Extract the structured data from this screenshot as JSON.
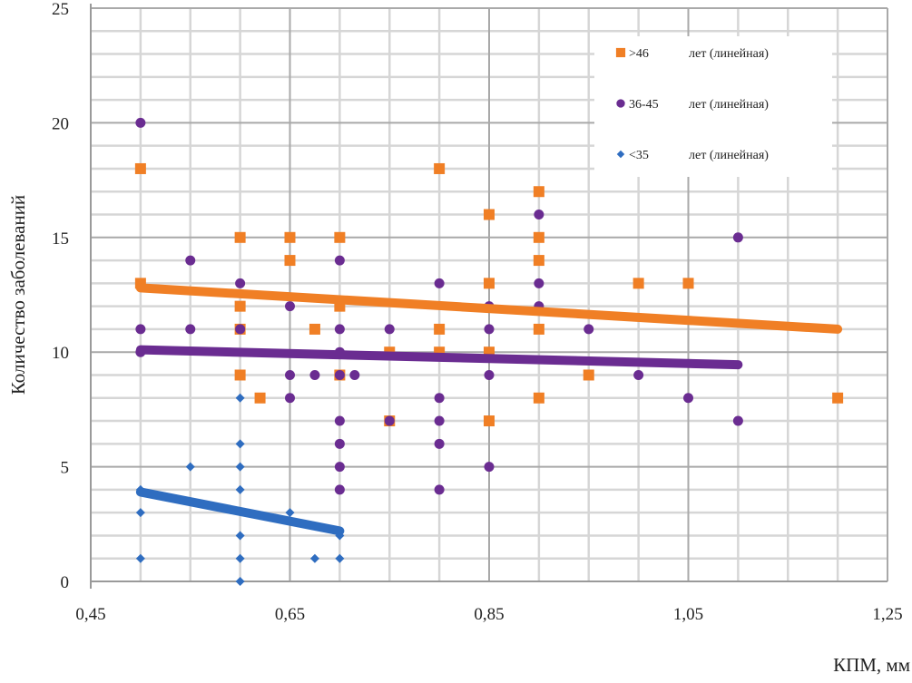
{
  "chart_data": {
    "type": "scatter",
    "title": "",
    "xlabel": "КПМ, мм",
    "ylabel": "Количество заболеваний",
    "xlim": [
      0.45,
      1.25
    ],
    "ylim": [
      0,
      25
    ],
    "x_major_step": 0.2,
    "x_minor_step": 0.05,
    "y_major_step": 5,
    "y_minor_step": 1,
    "x_tick_labels": [
      "0,45",
      "0,65",
      "0,85",
      "1,05",
      "1,25"
    ],
    "y_tick_labels": [
      "0",
      "5",
      "10",
      "15",
      "20",
      "25"
    ],
    "grid": true,
    "legend_position": "top-right",
    "series": [
      {
        "name": ">46",
        "legend_suffix": "лет (линейная)",
        "color": "#F07F25",
        "marker": "square",
        "points": [
          [
            0.5,
            18
          ],
          [
            0.5,
            13
          ],
          [
            0.6,
            15
          ],
          [
            0.6,
            12
          ],
          [
            0.6,
            11
          ],
          [
            0.6,
            9
          ],
          [
            0.62,
            8
          ],
          [
            0.65,
            15
          ],
          [
            0.65,
            14
          ],
          [
            0.675,
            11
          ],
          [
            0.7,
            15
          ],
          [
            0.7,
            12
          ],
          [
            0.7,
            9
          ],
          [
            0.75,
            10
          ],
          [
            0.75,
            7
          ],
          [
            0.8,
            18
          ],
          [
            0.8,
            11
          ],
          [
            0.8,
            10
          ],
          [
            0.85,
            16
          ],
          [
            0.85,
            13
          ],
          [
            0.85,
            10
          ],
          [
            0.85,
            7
          ],
          [
            0.9,
            17
          ],
          [
            0.9,
            15
          ],
          [
            0.9,
            14
          ],
          [
            0.9,
            11
          ],
          [
            0.9,
            8
          ],
          [
            0.95,
            9
          ],
          [
            1.0,
            13
          ],
          [
            1.05,
            13
          ],
          [
            1.2,
            8
          ]
        ],
        "trendline": [
          [
            0.5,
            12.8
          ],
          [
            1.2,
            11.0
          ]
        ]
      },
      {
        "name": "36-45",
        "legend_suffix": "лет (линейная)",
        "color": "#6A2C91",
        "marker": "circle",
        "points": [
          [
            0.5,
            20
          ],
          [
            0.5,
            11
          ],
          [
            0.5,
            10
          ],
          [
            0.55,
            14
          ],
          [
            0.55,
            11
          ],
          [
            0.6,
            13
          ],
          [
            0.6,
            11
          ],
          [
            0.65,
            12
          ],
          [
            0.65,
            9
          ],
          [
            0.65,
            8
          ],
          [
            0.675,
            9
          ],
          [
            0.7,
            14
          ],
          [
            0.7,
            11
          ],
          [
            0.7,
            10
          ],
          [
            0.7,
            9
          ],
          [
            0.7,
            7
          ],
          [
            0.7,
            6
          ],
          [
            0.7,
            5
          ],
          [
            0.7,
            4
          ],
          [
            0.715,
            9
          ],
          [
            0.75,
            11
          ],
          [
            0.75,
            7
          ],
          [
            0.8,
            13
          ],
          [
            0.8,
            8
          ],
          [
            0.8,
            7
          ],
          [
            0.8,
            6
          ],
          [
            0.8,
            4
          ],
          [
            0.85,
            12
          ],
          [
            0.85,
            11
          ],
          [
            0.85,
            9
          ],
          [
            0.85,
            5
          ],
          [
            0.9,
            16
          ],
          [
            0.9,
            13
          ],
          [
            0.9,
            12
          ],
          [
            0.95,
            11
          ],
          [
            1.0,
            9
          ],
          [
            1.05,
            8
          ],
          [
            1.1,
            15
          ],
          [
            1.1,
            7
          ]
        ],
        "trendline": [
          [
            0.5,
            10.1
          ],
          [
            1.1,
            9.45
          ]
        ]
      },
      {
        "name": "<35",
        "legend_suffix": "лет (линейная)",
        "color": "#2F6DC0",
        "marker": "diamond",
        "points": [
          [
            0.5,
            4
          ],
          [
            0.5,
            3
          ],
          [
            0.5,
            1
          ],
          [
            0.55,
            5
          ],
          [
            0.6,
            8
          ],
          [
            0.6,
            6
          ],
          [
            0.6,
            5
          ],
          [
            0.6,
            4
          ],
          [
            0.6,
            2
          ],
          [
            0.6,
            1
          ],
          [
            0.6,
            0
          ],
          [
            0.65,
            3
          ],
          [
            0.675,
            1
          ],
          [
            0.7,
            2
          ],
          [
            0.7,
            1
          ]
        ],
        "trendline": [
          [
            0.5,
            3.9
          ],
          [
            0.7,
            2.2
          ]
        ]
      }
    ]
  }
}
